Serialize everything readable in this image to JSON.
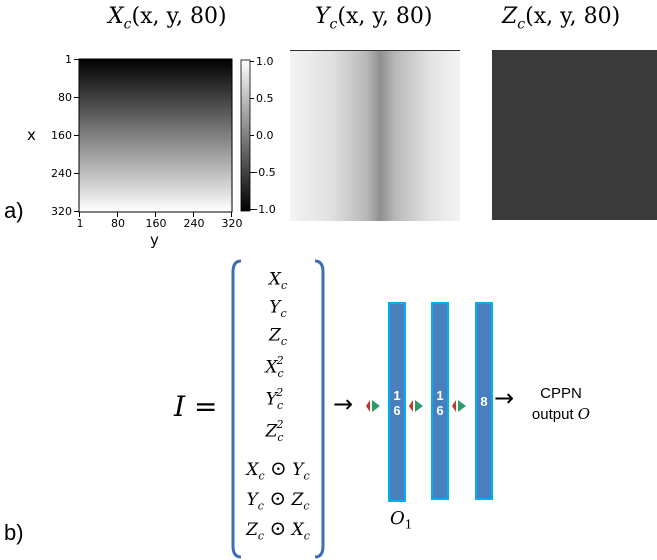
{
  "panel_a": {
    "label": "a)",
    "titles": [
      {
        "var": "X",
        "sub": "c",
        "args": "(x, y, 80)"
      },
      {
        "var": "Y",
        "sub": "c",
        "args": "(x, y, 80)"
      },
      {
        "var": "Z",
        "sub": "c",
        "args": "(x, y, 80)"
      }
    ],
    "x_axis_label": "x",
    "y_axis_label": "y",
    "x_ticks": [
      "1",
      "80",
      "160",
      "240",
      "320"
    ],
    "y_ticks": [
      "1",
      "80",
      "160",
      "240",
      "320"
    ],
    "colorbar_ticks": [
      "1.0",
      "0.5",
      "0.0",
      "−0.5",
      "−1.0"
    ],
    "colormap": "gray"
  },
  "panel_b": {
    "label": "b)",
    "lhs": "I =",
    "vector_items": [
      {
        "a": "X",
        "as": "c",
        "sup": "",
        "op": "",
        "b": "",
        "bs": ""
      },
      {
        "a": "Y",
        "as": "c",
        "sup": "",
        "op": "",
        "b": "",
        "bs": ""
      },
      {
        "a": "Z",
        "as": "c",
        "sup": "",
        "op": "",
        "b": "",
        "bs": ""
      },
      {
        "a": "X",
        "as": "c",
        "sup": "2",
        "op": "",
        "b": "",
        "bs": ""
      },
      {
        "a": "Y",
        "as": "c",
        "sup": "2",
        "op": "",
        "b": "",
        "bs": ""
      },
      {
        "a": "Z",
        "as": "c",
        "sup": "2",
        "op": "",
        "b": "",
        "bs": ""
      },
      {
        "a": "X",
        "as": "c",
        "sup": "",
        "op": "⊙",
        "b": "Y",
        "bs": "c"
      },
      {
        "a": "Y",
        "as": "c",
        "sup": "",
        "op": "⊙",
        "b": "Z",
        "bs": "c"
      },
      {
        "a": "Z",
        "as": "c",
        "sup": "",
        "op": "⊙",
        "b": "X",
        "bs": "c"
      }
    ],
    "layers": [
      {
        "size_line1": "1",
        "size_line2": "6"
      },
      {
        "size_line1": "1",
        "size_line2": "6"
      },
      {
        "size_line1": "8",
        "size_line2": ""
      }
    ],
    "layer_caption": {
      "var": "O",
      "sub": "1"
    },
    "output_label_line1": "CPPN",
    "output_label_line2": "output",
    "output_symbol": "O",
    "arrow_glyph": "→",
    "colors": {
      "bar_fill": "#4a7fbe",
      "bar_border": "#00b0f0",
      "bracket": "#3b6fb6",
      "conn_red": "#c0392b",
      "conn_green": "#2e9a6a"
    }
  }
}
